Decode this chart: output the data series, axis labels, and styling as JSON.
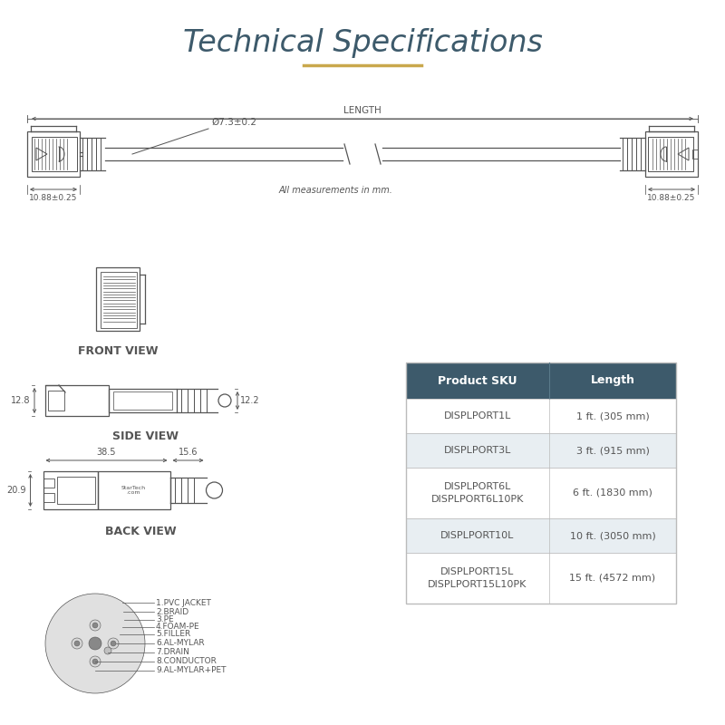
{
  "title": "Technical Specifications",
  "title_color": "#3d5a6b",
  "title_fontsize": 24,
  "title_bar_color": "#c9a84c",
  "bg_color": "#ffffff",
  "dc": "#555555",
  "table_header_bg": "#3d5a6b",
  "table_header_fg": "#ffffff",
  "table_row_alt_bg": "#e8eef2",
  "table_row_bg": "#ffffff",
  "table_border_color": "#bbbbbb",
  "table_text_color": "#555555",
  "table_data": [
    [
      "DISPLPORT1L",
      "1 ft. (305 mm)"
    ],
    [
      "DISPLPORT3L",
      "3 ft. (915 mm)"
    ],
    [
      "DISPLPORT6L\nDISPLPORT6L10PK",
      "6 ft. (1830 mm)"
    ],
    [
      "DISPLPORT10L",
      "10 ft. (3050 mm)"
    ],
    [
      "DISPLPORT15L\nDISPLPORT15L10PK",
      "15 ft. (4572 mm)"
    ]
  ],
  "cable_label_length": "LENGTH",
  "cable_label_diameter": "Ø7.3±0.2",
  "cable_label_left_dim": "10.88±0.25",
  "cable_label_right_dim": "10.88±0.25",
  "cable_label_note": "All measurements in mm.",
  "front_view_label": "FRONT VIEW",
  "side_view_label": "SIDE VIEW",
  "back_view_label": "BACK VIEW",
  "side_dim_top": "12.8",
  "side_dim_bottom": "12.2",
  "back_dim_width1": "38.5",
  "back_dim_width2": "15.6",
  "back_dim_height": "20.9",
  "cross_section_labels": [
    "1.PVC JACKET",
    "2.BRAID",
    "3.PE",
    "4.FOAM-PE",
    "5.FILLER",
    "6.AL-MYLAR",
    "7.DRAIN",
    "8.CONDUCTOR",
    "9.AL-MYLAR+PET"
  ]
}
